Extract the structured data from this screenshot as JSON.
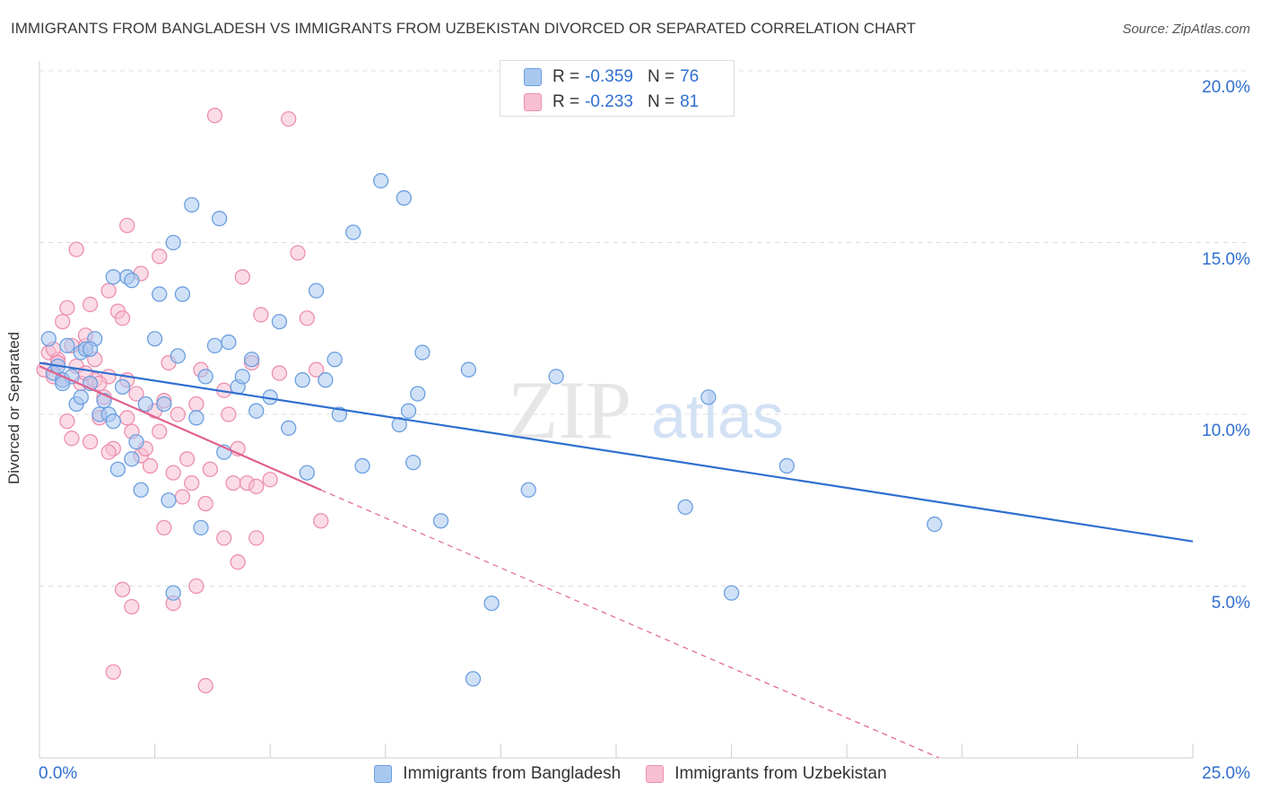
{
  "title": "IMMIGRANTS FROM BANGLADESH VS IMMIGRANTS FROM UZBEKISTAN DIVORCED OR SEPARATED CORRELATION CHART",
  "source": "Source: ZipAtlas.com",
  "watermark": {
    "zip": "ZIP",
    "atlas": "atlas"
  },
  "legend": {
    "r_label": "R =",
    "n_label": "N =",
    "rows": [
      {
        "r": "-0.359",
        "n": "76",
        "color": "#8fb6ee"
      },
      {
        "r": "-0.233",
        "n": "81",
        "color": "#f3a6c0"
      }
    ]
  },
  "colors": {
    "blue_fill": "#a9c8f0",
    "blue_stroke": "#6b9fe0",
    "blue_line": "#2f6fd0",
    "pink_fill": "#f7bfd1",
    "pink_stroke": "#ec8fb0",
    "pink_line": "#e0608e"
  },
  "chart_data": {
    "type": "scatter",
    "title": "IMMIGRANTS FROM BANGLADESH VS IMMIGRANTS FROM UZBEKISTAN DIVORCED OR SEPARATED CORRELATION CHART",
    "xlabel": "",
    "ylabel": "Divorced or Separated",
    "xlim": [
      0,
      25
    ],
    "ylim": [
      0,
      20
    ],
    "x_tick_labels": [
      "0.0%",
      "25.0%"
    ],
    "y_ticks": [
      5,
      10,
      15,
      20
    ],
    "y_tick_labels": [
      "5.0%",
      "10.0%",
      "15.0%",
      "20.0%"
    ],
    "grid": true,
    "series": [
      {
        "name": "Immigrants from Bangladesh",
        "R": -0.359,
        "N": 76,
        "trend": {
          "x": [
            0,
            25
          ],
          "y": [
            11.5,
            6.3
          ]
        },
        "points": [
          [
            0.2,
            12.2
          ],
          [
            0.3,
            11.2
          ],
          [
            0.4,
            11.4
          ],
          [
            0.5,
            11.0
          ],
          [
            0.6,
            12.0
          ],
          [
            0.7,
            11.1
          ],
          [
            0.8,
            10.3
          ],
          [
            0.9,
            11.8
          ],
          [
            1.0,
            11.9
          ],
          [
            1.1,
            10.9
          ],
          [
            1.2,
            12.2
          ],
          [
            1.3,
            10.0
          ],
          [
            1.4,
            10.4
          ],
          [
            1.5,
            10.0
          ],
          [
            1.6,
            14.0
          ],
          [
            1.8,
            10.8
          ],
          [
            1.7,
            8.4
          ],
          [
            1.9,
            14.0
          ],
          [
            2.0,
            8.7
          ],
          [
            2.1,
            9.2
          ],
          [
            2.2,
            7.8
          ],
          [
            2.3,
            10.3
          ],
          [
            2.5,
            12.2
          ],
          [
            2.6,
            13.5
          ],
          [
            2.8,
            7.5
          ],
          [
            2.9,
            15.0
          ],
          [
            3.0,
            11.7
          ],
          [
            3.1,
            13.5
          ],
          [
            3.3,
            16.1
          ],
          [
            3.4,
            9.9
          ],
          [
            3.5,
            6.7
          ],
          [
            3.6,
            11.1
          ],
          [
            3.9,
            15.7
          ],
          [
            4.0,
            8.9
          ],
          [
            4.1,
            12.1
          ],
          [
            4.3,
            10.8
          ],
          [
            4.4,
            11.1
          ],
          [
            4.6,
            11.6
          ],
          [
            4.7,
            10.1
          ],
          [
            5.0,
            10.5
          ],
          [
            5.4,
            9.6
          ],
          [
            5.7,
            11.0
          ],
          [
            5.8,
            8.3
          ],
          [
            6.0,
            13.6
          ],
          [
            6.2,
            11.0
          ],
          [
            6.4,
            11.6
          ],
          [
            6.5,
            10.0
          ],
          [
            6.8,
            15.3
          ],
          [
            7.0,
            8.5
          ],
          [
            7.4,
            16.8
          ],
          [
            7.8,
            9.7
          ],
          [
            7.9,
            16.3
          ],
          [
            8.0,
            10.1
          ],
          [
            8.1,
            8.6
          ],
          [
            8.2,
            10.6
          ],
          [
            8.3,
            11.8
          ],
          [
            8.7,
            6.9
          ],
          [
            9.3,
            11.3
          ],
          [
            9.4,
            2.3
          ],
          [
            9.8,
            4.5
          ],
          [
            10.6,
            7.8
          ],
          [
            11.2,
            11.1
          ],
          [
            14.0,
            7.3
          ],
          [
            14.5,
            10.5
          ],
          [
            15.0,
            4.8
          ],
          [
            16.2,
            8.5
          ],
          [
            19.4,
            6.8
          ],
          [
            2.9,
            4.8
          ],
          [
            1.1,
            11.9
          ],
          [
            0.5,
            10.9
          ],
          [
            2.0,
            13.9
          ],
          [
            0.9,
            10.5
          ],
          [
            3.8,
            12.0
          ],
          [
            5.2,
            12.7
          ],
          [
            1.6,
            9.8
          ],
          [
            2.7,
            10.3
          ]
        ]
      },
      {
        "name": "Immigrants from Uzbekistan",
        "R": -0.233,
        "N": 81,
        "trend": {
          "x": [
            0,
            6.1
          ],
          "y": [
            11.4,
            7.8
          ]
        },
        "trend_extended": {
          "x": [
            6.1,
            19.5
          ],
          "y": [
            7.8,
            0.0
          ]
        },
        "points": [
          [
            0.1,
            11.3
          ],
          [
            0.2,
            11.8
          ],
          [
            0.3,
            11.1
          ],
          [
            0.4,
            11.6
          ],
          [
            0.5,
            11.0
          ],
          [
            0.6,
            9.8
          ],
          [
            0.7,
            9.3
          ],
          [
            0.8,
            11.4
          ],
          [
            0.9,
            10.9
          ],
          [
            1.0,
            12.0
          ],
          [
            1.1,
            9.2
          ],
          [
            1.2,
            11.6
          ],
          [
            1.3,
            9.9
          ],
          [
            1.4,
            10.5
          ],
          [
            1.5,
            11.1
          ],
          [
            1.6,
            9.0
          ],
          [
            1.7,
            13.0
          ],
          [
            1.8,
            12.8
          ],
          [
            1.9,
            11.0
          ],
          [
            2.0,
            9.5
          ],
          [
            2.1,
            10.6
          ],
          [
            2.2,
            8.8
          ],
          [
            2.3,
            9.0
          ],
          [
            2.4,
            8.5
          ],
          [
            2.5,
            10.1
          ],
          [
            2.6,
            9.5
          ],
          [
            2.7,
            10.4
          ],
          [
            2.8,
            11.5
          ],
          [
            2.9,
            8.3
          ],
          [
            3.0,
            10.0
          ],
          [
            3.1,
            7.6
          ],
          [
            3.2,
            8.7
          ],
          [
            3.3,
            8.0
          ],
          [
            3.4,
            10.3
          ],
          [
            3.5,
            11.3
          ],
          [
            3.6,
            7.4
          ],
          [
            3.7,
            8.4
          ],
          [
            3.8,
            18.7
          ],
          [
            4.0,
            10.7
          ],
          [
            4.1,
            10.0
          ],
          [
            4.2,
            8.0
          ],
          [
            4.3,
            9.0
          ],
          [
            4.4,
            14.0
          ],
          [
            4.5,
            8.0
          ],
          [
            4.6,
            11.5
          ],
          [
            4.7,
            6.4
          ],
          [
            4.8,
            12.9
          ],
          [
            5.0,
            8.1
          ],
          [
            5.2,
            11.2
          ],
          [
            5.4,
            18.6
          ],
          [
            5.6,
            14.7
          ],
          [
            5.8,
            12.8
          ],
          [
            6.0,
            11.3
          ],
          [
            2.6,
            14.6
          ],
          [
            1.5,
            13.6
          ],
          [
            1.9,
            15.5
          ],
          [
            1.8,
            4.9
          ],
          [
            2.0,
            4.4
          ],
          [
            1.6,
            2.5
          ],
          [
            2.9,
            4.5
          ],
          [
            3.4,
            5.0
          ],
          [
            3.6,
            2.1
          ],
          [
            4.0,
            6.4
          ],
          [
            4.7,
            7.9
          ],
          [
            4.3,
            5.7
          ],
          [
            6.1,
            6.9
          ],
          [
            0.3,
            11.9
          ],
          [
            0.4,
            11.5
          ],
          [
            0.5,
            12.7
          ],
          [
            0.6,
            13.1
          ],
          [
            0.7,
            12.0
          ],
          [
            0.8,
            14.8
          ],
          [
            1.0,
            12.3
          ],
          [
            1.1,
            13.2
          ],
          [
            1.2,
            11.0
          ],
          [
            1.3,
            10.9
          ],
          [
            2.2,
            14.1
          ],
          [
            2.7,
            6.7
          ],
          [
            1.9,
            9.9
          ],
          [
            1.5,
            8.9
          ],
          [
            1.0,
            11.2
          ]
        ]
      }
    ]
  }
}
